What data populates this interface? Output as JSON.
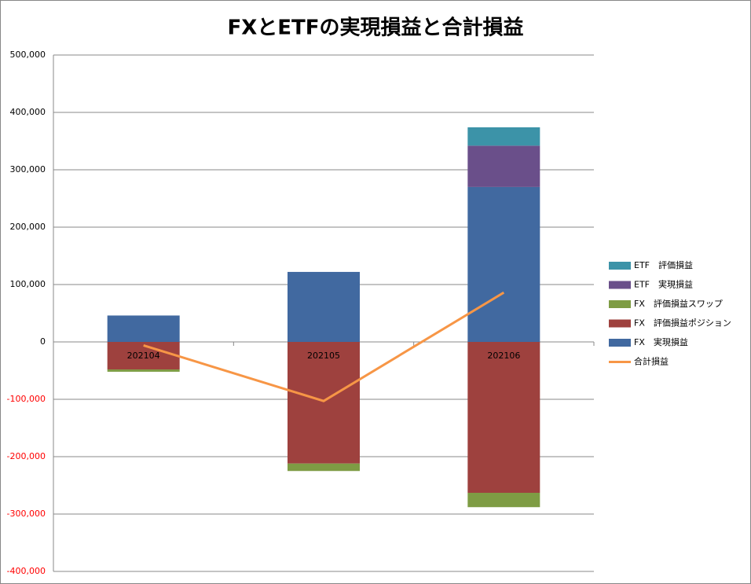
{
  "chart_data": {
    "type": "bar",
    "title": "FXとETFの実現損益と合計損益",
    "categories": [
      "202104",
      "202105",
      "202106"
    ],
    "series": [
      {
        "name": "FX　実現損益",
        "color": "#4169a0",
        "values": [
          46000,
          122000,
          270000
        ]
      },
      {
        "name": "FX　評価損益ポジション",
        "color": "#9e413e",
        "values": [
          -48000,
          -212000,
          -263000
        ]
      },
      {
        "name": "FX　評価損益スワップ",
        "color": "#7e9c44",
        "values": [
          -4000,
          -13000,
          -25000
        ]
      },
      {
        "name": "ETF　実現損益",
        "color": "#6a4f8a",
        "values": [
          0,
          0,
          72000
        ]
      },
      {
        "name": "ETF　評価損益",
        "color": "#3c93a8",
        "values": [
          0,
          0,
          32000
        ]
      },
      {
        "name": "合計損益",
        "type": "line",
        "color": "#f79646",
        "values": [
          -6000,
          -103000,
          86000
        ]
      }
    ],
    "ylim": [
      -400000,
      500000
    ],
    "yticks": [
      {
        "value": -400000,
        "label": "-400,000"
      },
      {
        "value": -300000,
        "label": "-300,000"
      },
      {
        "value": -200000,
        "label": "-200,000"
      },
      {
        "value": -100000,
        "label": "-100,000"
      },
      0,
      {
        "value": 100000,
        "label": "100,000"
      },
      {
        "value": 200000,
        "label": "200,000"
      },
      {
        "value": 300000,
        "label": "300,000"
      },
      {
        "value": 400000,
        "label": "400,000"
      },
      {
        "value": 500000,
        "label": "500,000"
      }
    ],
    "grid": true,
    "negative_tick_color": "#ff0000",
    "legend": "right"
  }
}
